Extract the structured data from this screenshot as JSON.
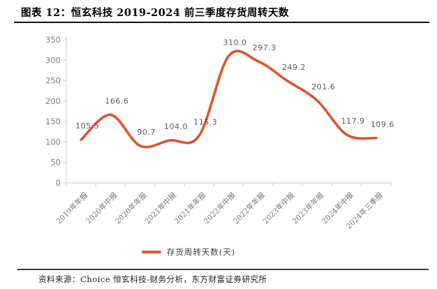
{
  "header": {
    "title": "图表 12：恒玄科技 2019-2024 前三季度存货周转天数"
  },
  "chart_data": {
    "type": "line",
    "title": "恒玄科技2019-2024前三季度存货周转天数",
    "categories": [
      "2019年年报",
      "2020年中报",
      "2020年年报",
      "2021年中报",
      "2021年年报",
      "2022年中报",
      "2022年年报",
      "2023年中报",
      "2023年年报",
      "2024年中报",
      "2024年三季报"
    ],
    "series": [
      {
        "name": "存货周转天数(天)",
        "values": [
          105.5,
          166.6,
          90.7,
          104.0,
          115.3,
          310.0,
          297.3,
          249.2,
          201.6,
          117.9,
          109.6
        ],
        "labels": [
          "105.5",
          "166.6",
          "90.7",
          "104.0",
          "115.3",
          "310.0",
          "297.3",
          "249.2",
          "201.6",
          "117.9",
          "109.6"
        ]
      }
    ],
    "ylim": [
      0,
      350
    ],
    "yticks": [
      0,
      50,
      100,
      150,
      200,
      250,
      300,
      350
    ],
    "grid": false,
    "smooth": true,
    "legend_position": "bottom",
    "colors": {
      "line": "#DE5428",
      "data_label": "#595959",
      "axis": "#D2D2D2",
      "ytick_label": "#7F7F7F",
      "xtick_label": "#737373"
    }
  },
  "legend": {
    "label": "存货周转天数(天)"
  },
  "footer": {
    "source": "资料来源：Choice 恒玄科技-财务分析，东方财富证券研究所"
  }
}
